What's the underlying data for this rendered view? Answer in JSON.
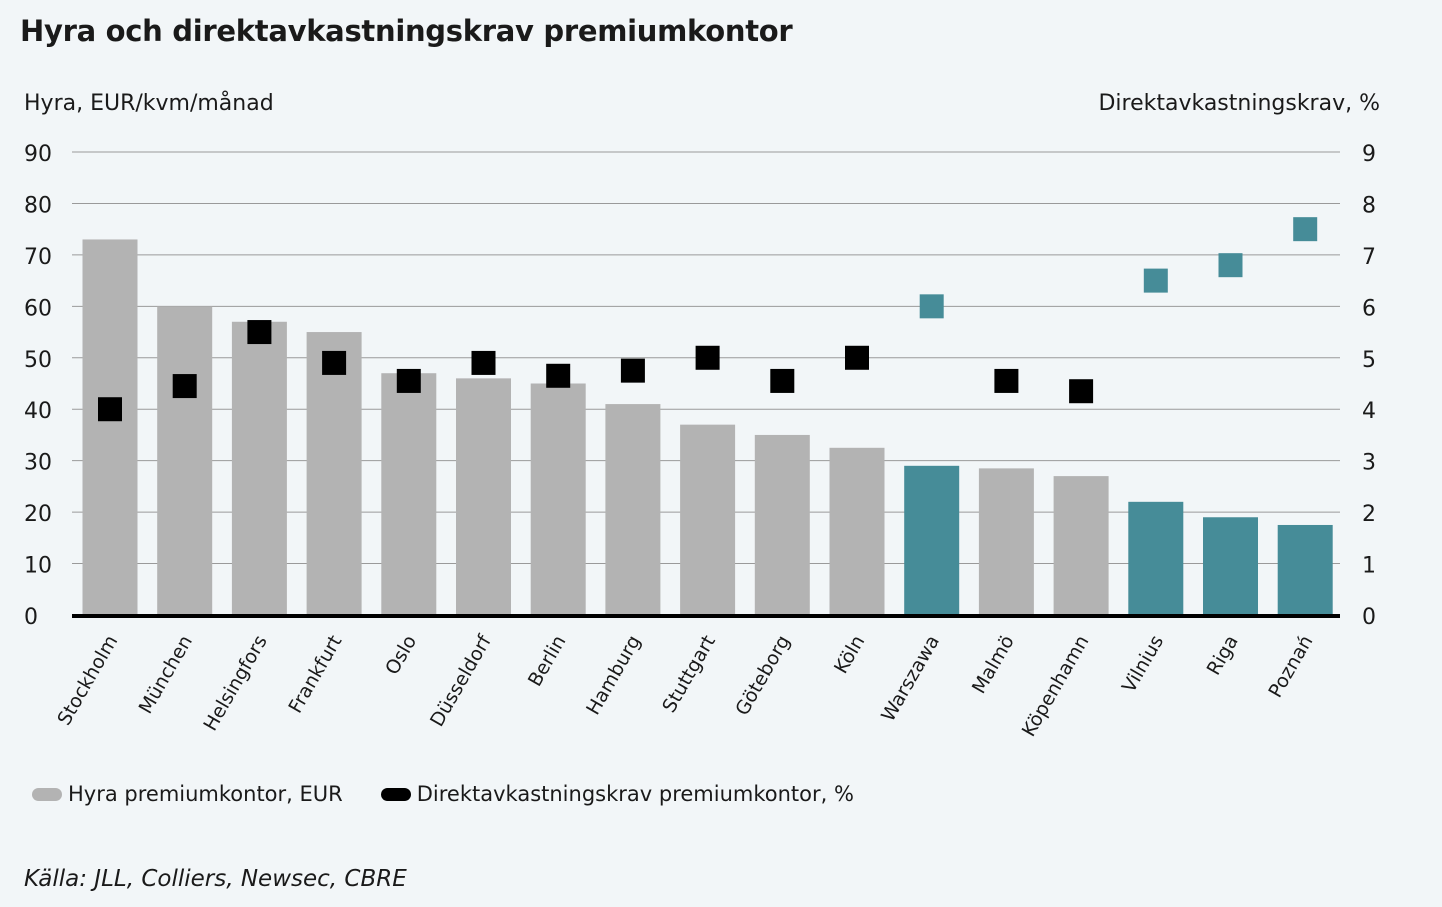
{
  "chart_data": {
    "type": "bar",
    "title": "Hyra och direktavkastningskrav premiumkontor",
    "ylabel_left": "Hyra, EUR/kvm/månad",
    "ylabel_right": "Direktavkastningskrav, %",
    "ylim_left": [
      0,
      90
    ],
    "ylim_right": [
      0,
      9
    ],
    "yticks_left": [
      "0",
      "10",
      "20",
      "30",
      "40",
      "50",
      "60",
      "70",
      "80",
      "90"
    ],
    "yticks_right": [
      "0",
      "1",
      "2",
      "3",
      "4",
      "5",
      "6",
      "7",
      "8",
      "9"
    ],
    "grid": true,
    "categories": [
      "Stockholm",
      "München",
      "Helsingfors",
      "Frankfurt",
      "Oslo",
      "Düsseldorf",
      "Berlin",
      "Hamburg",
      "Stuttgart",
      "Göteborg",
      "Köln",
      "Warszawa",
      "Malmö",
      "Köpenhamn",
      "Vilnius",
      "Riga",
      "Poznań"
    ],
    "series": [
      {
        "name": "Hyra premiumkontor, EUR",
        "type": "bar",
        "axis": "left",
        "values": [
          73,
          60,
          57,
          55,
          47,
          46,
          45,
          41,
          37,
          35,
          32.5,
          29,
          28.5,
          27,
          22,
          19,
          17.5
        ]
      },
      {
        "name": "Direktavkastningskrav premiumkontor, %",
        "type": "scatter",
        "axis": "right",
        "values": [
          4.0,
          4.45,
          5.5,
          4.9,
          4.55,
          4.9,
          4.65,
          4.75,
          5.0,
          4.55,
          5.0,
          6.0,
          4.55,
          4.35,
          6.5,
          6.8,
          7.5
        ]
      }
    ],
    "highlight_categories": [
      "Warszawa",
      "Vilnius",
      "Riga",
      "Poznań"
    ],
    "legend_position": "bottom-left"
  },
  "colors": {
    "bar_default": "#b3b3b3",
    "bar_highlight": "#468c98",
    "marker_default": "#000000",
    "marker_highlight": "#468c98",
    "gridline": "#9a9a9a",
    "baseline": "#000000"
  },
  "source": "Källa: JLL, Colliers, Newsec, CBRE"
}
